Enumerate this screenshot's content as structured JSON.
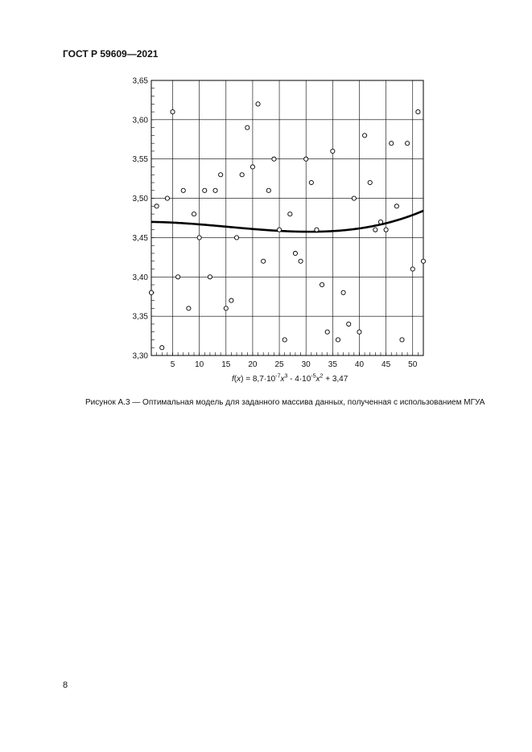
{
  "header": {
    "standard": "ГОСТ Р 59609—2021"
  },
  "figure": {
    "formula": {
      "fn": "f",
      "arg": "x",
      "eq": " = 8,7·10",
      "e1": "-7",
      "x1": "x",
      "p1": "3",
      "mid": " - 4·10",
      "e2": "-5",
      "x2": "x",
      "p2": "2",
      "tail": " + 3,47"
    },
    "caption": "Рисунок А.3 — Оптимальная модель для заданного массива данных, полученная с использованием МГУА"
  },
  "chart_data": {
    "type": "scatter",
    "xlim": [
      1,
      52
    ],
    "ylim": [
      3.3,
      3.65
    ],
    "xticks": [
      5,
      10,
      15,
      20,
      25,
      30,
      35,
      40,
      45,
      50
    ],
    "xtick_labels": [
      "5",
      "10",
      "15",
      "20",
      "25",
      "30",
      "35",
      "40",
      "45",
      "50"
    ],
    "yticks": [
      3.3,
      3.35,
      3.4,
      3.45,
      3.5,
      3.55,
      3.6,
      3.65
    ],
    "ytick_labels": [
      "3,30",
      "3,35",
      "3,40",
      "3,45",
      "3,50",
      "3,55",
      "3,60",
      "3,65"
    ],
    "grid": true,
    "series": [
      {
        "marker": "open-circle",
        "x": [
          1,
          2,
          3,
          4,
          5,
          6,
          7,
          8,
          9,
          10,
          11,
          12,
          13,
          14,
          15,
          16,
          17,
          18,
          19,
          20,
          21,
          22,
          23,
          24,
          25,
          26,
          27,
          28,
          29,
          30,
          31,
          32,
          33,
          34,
          35,
          36,
          37,
          38,
          39,
          40,
          41,
          42,
          43,
          44,
          45,
          46,
          47,
          48,
          49,
          50,
          51,
          52
        ],
        "y": [
          3.38,
          3.49,
          3.31,
          3.5,
          3.61,
          3.4,
          3.51,
          3.36,
          3.48,
          3.45,
          3.51,
          3.4,
          3.51,
          3.53,
          3.36,
          3.37,
          3.45,
          3.53,
          3.59,
          3.54,
          3.62,
          3.42,
          3.51,
          3.55,
          3.46,
          3.32,
          3.48,
          3.43,
          3.42,
          3.55,
          3.52,
          3.46,
          3.39,
          3.33,
          3.56,
          3.32,
          3.38,
          3.34,
          3.5,
          3.33,
          3.58,
          3.52,
          3.46,
          3.47,
          3.46,
          3.57,
          3.49,
          3.32,
          3.57,
          3.41,
          3.61,
          3.42
        ]
      },
      {
        "type": "line",
        "model": {
          "a3": 8.7e-07,
          "a2": -4e-05,
          "a0": 3.47
        }
      }
    ]
  }
}
